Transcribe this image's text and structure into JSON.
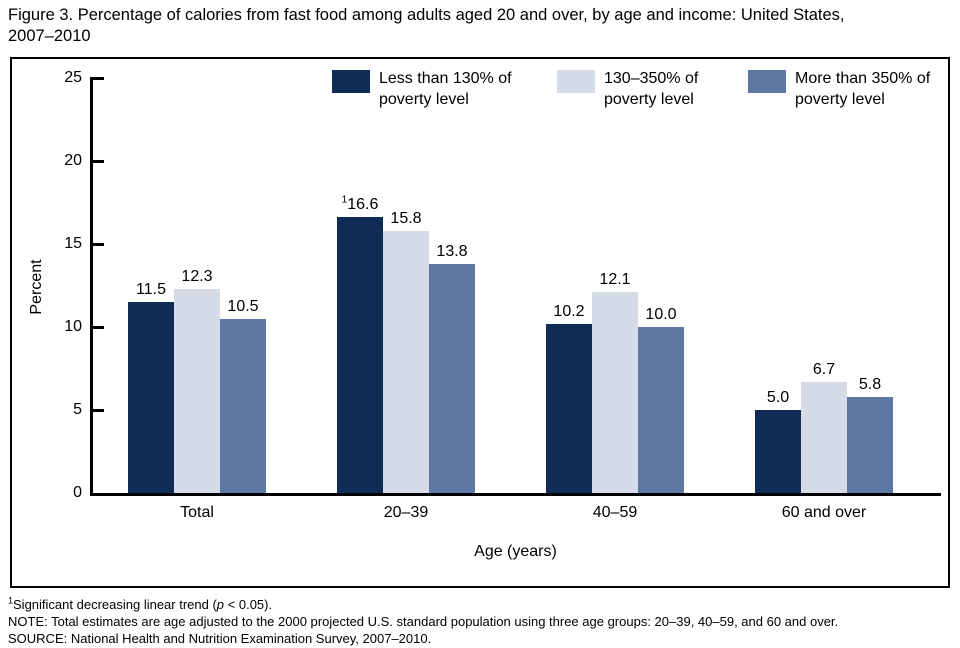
{
  "figure": {
    "title_line1": "Figure 3. Percentage of calories from fast food among adults aged 20 and over, by age and income: United States,",
    "title_line2": "2007–2010"
  },
  "chart_data": {
    "type": "bar",
    "title": "Figure 3. Percentage of calories from fast food among adults aged 20 and over, by age and income: United States, 2007–2010",
    "categories": [
      "Total",
      "20–39",
      "40–59",
      "60 and over"
    ],
    "series": [
      {
        "name": "Less than 130% of poverty level",
        "color": "#0e2c55",
        "values": [
          11.5,
          16.6,
          10.2,
          5.0
        ]
      },
      {
        "name": "130–350% of poverty level",
        "color": "#d6dbe8",
        "values": [
          12.3,
          15.8,
          12.1,
          6.7
        ]
      },
      {
        "name": "More than 350% of poverty level",
        "color": "#5f77a3",
        "values": [
          10.5,
          13.8,
          10.0,
          5.8
        ]
      }
    ],
    "annotations": [
      {
        "series_index": 0,
        "category_index": 1,
        "marker": "1",
        "meaning": "Significant decreasing linear trend (p < 0.05)."
      }
    ],
    "xlabel": "Age (years)",
    "ylabel": "Percent",
    "ylim": [
      0,
      25
    ],
    "yticks": [
      0,
      5,
      10,
      15,
      20,
      25
    ],
    "grid": false,
    "legend_position": "top",
    "legend_items": [
      {
        "line1": "Less than 130% of",
        "line2": "poverty level",
        "color": "#0e2c55"
      },
      {
        "line1": "130–350% of",
        "line2": "poverty level",
        "color": "#d6dbe8"
      },
      {
        "line1": "More than 350% of",
        "line2": "poverty level",
        "color": "#5f77a3"
      }
    ]
  },
  "footnotes": {
    "note1_sup": "1",
    "note1_pre": "Significant decreasing linear trend (",
    "note1_italic": "p",
    "note1_post": " < 0.05).",
    "note2": "NOTE: Total estimates are age adjusted to the 2000 projected U.S. standard population using three age groups: 20–39, 40–59, and 60 and over.",
    "note3": "SOURCE: National Health and Nutrition Examination Survey, 2007–2010."
  }
}
